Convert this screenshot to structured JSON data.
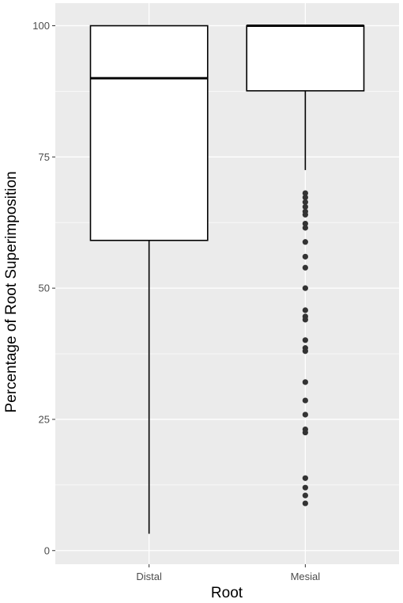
{
  "chart_data": {
    "type": "box",
    "xlabel": "Root",
    "ylabel": "Percentage of Root Superimposition",
    "ylim": [
      -2.6,
      104.3
    ],
    "y_ticks": [
      0,
      25,
      50,
      75,
      100
    ],
    "categories": [
      "Distal",
      "Mesial"
    ],
    "boxes": [
      {
        "category": "Distal",
        "min": 3.2,
        "q1": 59.1,
        "median": 90.0,
        "q3": 100.0,
        "max": 100.0,
        "outliers": []
      },
      {
        "category": "Mesial",
        "min": 72.5,
        "q1": 87.6,
        "median": 100.0,
        "q3": 100.0,
        "max": 100.0,
        "outliers": [
          68.1,
          67.3,
          66.4,
          65.5,
          64.6,
          64.0,
          62.3,
          61.5,
          58.8,
          56.0,
          53.9,
          50.0,
          45.8,
          44.6,
          44.0,
          40.1,
          38.6,
          38.0,
          32.1,
          28.6,
          25.9,
          23.1,
          22.5,
          13.8,
          12.0,
          10.5,
          9.0
        ]
      }
    ],
    "grid": true,
    "colors": {
      "panel": "#ebebeb",
      "grid_major": "#ffffff",
      "box_fill": "#ffffff",
      "line": "#000000",
      "outlier": "#333333"
    }
  }
}
